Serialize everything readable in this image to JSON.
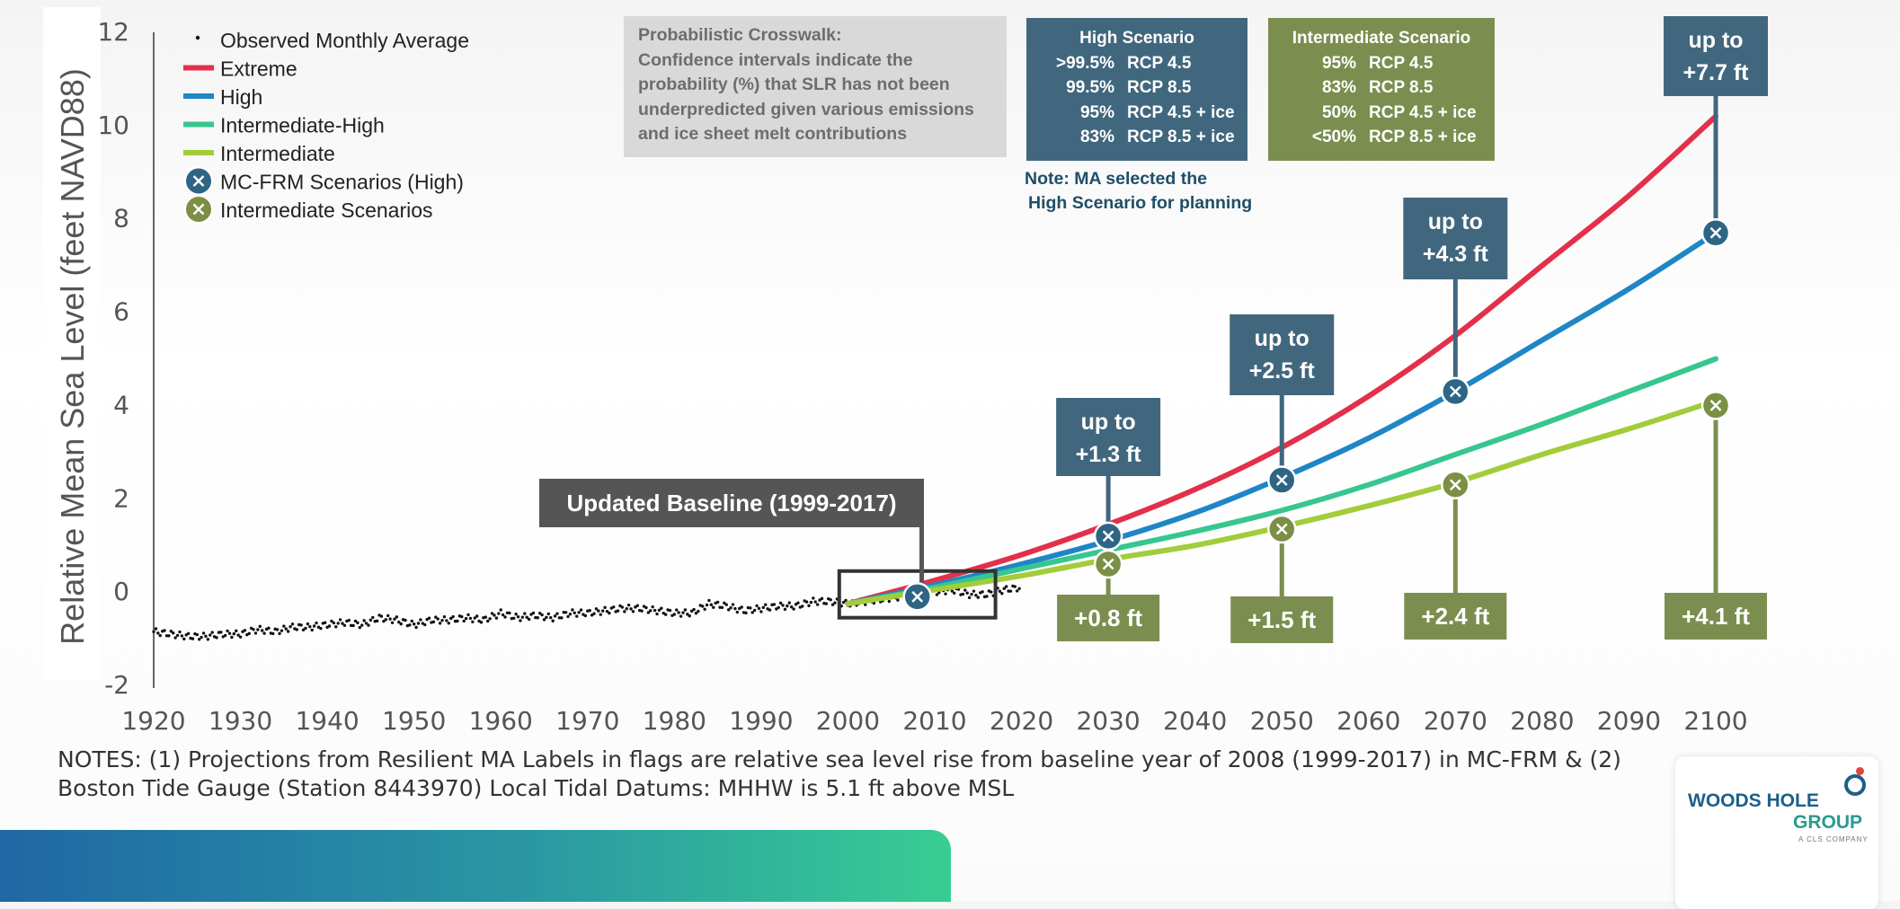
{
  "chart_data": {
    "type": "line",
    "title": "",
    "xlabel": "",
    "ylabel": "Relative Mean Sea Level (feet NAVD88)",
    "xlim": [
      1920,
      2100
    ],
    "ylim": [
      -2,
      12
    ],
    "x_ticks": [
      "1920",
      "1930",
      "1940",
      "1950",
      "1960",
      "1970",
      "1980",
      "1990",
      "2000",
      "2010",
      "2020",
      "2030",
      "2040",
      "2050",
      "2060",
      "2070",
      "2080",
      "2090",
      "2100"
    ],
    "y_ticks": [
      "12",
      "10",
      "8",
      "6",
      "4",
      "2",
      "0",
      "-2"
    ],
    "legend": {
      "position": "top-left",
      "entries": [
        "Observed Monthly Average",
        "Extreme",
        "High",
        "Intermediate-High",
        "Intermediate",
        "MC-FRM Scenarios (High)",
        "Intermediate Scenarios"
      ]
    },
    "series": [
      {
        "name": "Observed Monthly Average",
        "kind": "dotted",
        "color": "#111111",
        "x": [
          1920,
          1922,
          1924,
          1926,
          1928,
          1930,
          1932,
          1934,
          1936,
          1938,
          1940,
          1942,
          1944,
          1946,
          1948,
          1950,
          1952,
          1954,
          1956,
          1958,
          1960,
          1962,
          1964,
          1966,
          1968,
          1970,
          1972,
          1974,
          1976,
          1978,
          1980,
          1982,
          1984,
          1986,
          1988,
          1990,
          1992,
          1994,
          1996,
          1998,
          2000,
          2002,
          2004,
          2006,
          2008,
          2010,
          2012,
          2014,
          2016,
          2018,
          2020
        ],
        "y": [
          -0.85,
          -0.9,
          -0.95,
          -0.95,
          -0.9,
          -0.9,
          -0.8,
          -0.85,
          -0.75,
          -0.75,
          -0.7,
          -0.65,
          -0.7,
          -0.55,
          -0.6,
          -0.7,
          -0.6,
          -0.6,
          -0.55,
          -0.6,
          -0.45,
          -0.55,
          -0.5,
          -0.55,
          -0.45,
          -0.45,
          -0.4,
          -0.35,
          -0.35,
          -0.4,
          -0.45,
          -0.45,
          -0.25,
          -0.3,
          -0.4,
          -0.35,
          -0.3,
          -0.3,
          -0.2,
          -0.2,
          -0.25,
          -0.2,
          -0.15,
          -0.1,
          -0.05,
          0.0,
          0.05,
          -0.05,
          -0.05,
          0.05,
          0.1
        ]
      },
      {
        "name": "Extreme",
        "color": "#e3304a",
        "x": [
          2000,
          2010,
          2020,
          2030,
          2040,
          2050,
          2060,
          2070,
          2080,
          2090,
          2100
        ],
        "y": [
          -0.25,
          0.25,
          0.8,
          1.45,
          2.2,
          3.1,
          4.2,
          5.5,
          7.0,
          8.5,
          10.2
        ]
      },
      {
        "name": "High",
        "color": "#1f86c5",
        "x": [
          2000,
          2010,
          2020,
          2030,
          2040,
          2050,
          2060,
          2070,
          2080,
          2090,
          2100
        ],
        "y": [
          -0.25,
          0.15,
          0.6,
          1.1,
          1.7,
          2.45,
          3.3,
          4.3,
          5.4,
          6.5,
          7.7
        ]
      },
      {
        "name": "Intermediate-High",
        "color": "#37c68f",
        "x": [
          2000,
          2010,
          2020,
          2030,
          2040,
          2050,
          2060,
          2070,
          2080,
          2090,
          2100
        ],
        "y": [
          -0.25,
          0.1,
          0.5,
          0.9,
          1.3,
          1.75,
          2.3,
          2.95,
          3.6,
          4.3,
          5.0
        ]
      },
      {
        "name": "Intermediate",
        "color": "#a3cc3a",
        "x": [
          2000,
          2010,
          2020,
          2030,
          2040,
          2050,
          2060,
          2070,
          2080,
          2090,
          2100
        ],
        "y": [
          -0.25,
          0.05,
          0.35,
          0.7,
          1.0,
          1.4,
          1.85,
          2.35,
          2.95,
          3.5,
          4.1
        ]
      }
    ],
    "markers": {
      "high": [
        {
          "x": 2008,
          "y": -0.1
        },
        {
          "x": 2030,
          "y": 1.2
        },
        {
          "x": 2050,
          "y": 2.4
        },
        {
          "x": 2070,
          "y": 4.3
        },
        {
          "x": 2100,
          "y": 7.7
        }
      ],
      "intermediate": [
        {
          "x": 2030,
          "y": 0.6
        },
        {
          "x": 2050,
          "y": 1.35
        },
        {
          "x": 2070,
          "y": 2.3
        },
        {
          "x": 2100,
          "y": 4.0
        }
      ]
    },
    "flags_high": [
      {
        "x": 2030,
        "line1": "up to",
        "line2": "+1.3 ft"
      },
      {
        "x": 2050,
        "line1": "up to",
        "line2": "+2.5 ft"
      },
      {
        "x": 2070,
        "line1": "up to",
        "line2": "+4.3 ft"
      },
      {
        "x": 2100,
        "line1": "up to",
        "line2": "+7.7 ft"
      }
    ],
    "flags_intermediate": [
      {
        "x": 2030,
        "label": "+0.8 ft"
      },
      {
        "x": 2050,
        "label": "+1.5 ft"
      },
      {
        "x": 2070,
        "label": "+2.4 ft"
      },
      {
        "x": 2100,
        "label": "+4.1 ft"
      }
    ],
    "baseline_label": "Updated Baseline (1999-2017)",
    "baseline_range": [
      1999,
      2017
    ]
  },
  "crosswalk": {
    "title": "Probabilistic Crosswalk:",
    "lines": [
      "Confidence intervals indicate the",
      "probability (%) that SLR has not been",
      "underpredicted given various emissions",
      "and ice sheet melt contributions"
    ]
  },
  "high_scenario": {
    "title": "High Scenario",
    "rows": [
      {
        "pct": ">99.5%",
        "rcp": "RCP 4.5"
      },
      {
        "pct": "99.5%",
        "rcp": "RCP 8.5"
      },
      {
        "pct": "95%",
        "rcp": "RCP 4.5 + ice"
      },
      {
        "pct": "83%",
        "rcp": "RCP 8.5 + ice"
      }
    ]
  },
  "intermediate_scenario": {
    "title": "Intermediate Scenario",
    "rows": [
      {
        "pct": "95%",
        "rcp": "RCP 4.5"
      },
      {
        "pct": "83%",
        "rcp": "RCP 8.5"
      },
      {
        "pct": "50%",
        "rcp": "RCP 4.5 + ice"
      },
      {
        "pct": "<50%",
        "rcp": "RCP 8.5 + ice"
      }
    ]
  },
  "note": {
    "line1": "Note: MA selected the",
    "line2": "High Scenario for planning"
  },
  "notes": {
    "line1": "NOTES: (1) Projections from Resilient MA Labels in flags are relative sea level rise from baseline year of 2008 (1999-2017) in MC-FRM & (2)",
    "line2": "Boston Tide Gauge (Station 8443970) Local Tidal Datums: MHHW is 5.1 ft above MSL"
  },
  "logo": {
    "line1": "WOODS HOLE",
    "line2": "GROUP",
    "line3": "A CLS COMPANY"
  },
  "colors": {
    "high_flag": "#41677e",
    "int_flag": "#7c8e4f",
    "high_marker": "#2e6584",
    "int_marker": "#7b8f45",
    "baseline_box": "#555555"
  }
}
